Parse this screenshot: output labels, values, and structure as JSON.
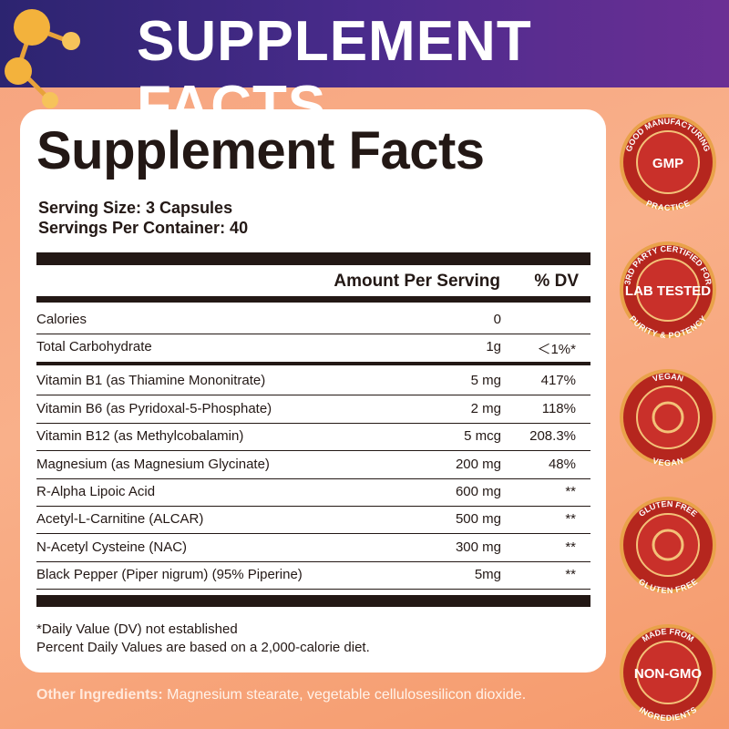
{
  "banner": {
    "title": "SUPPLEMENT FACTS"
  },
  "panel": {
    "title": "Supplement Facts",
    "serving_size": "Serving Size: 3 Capsules",
    "servings_per_container": "Servings Per Container: 40",
    "columns": {
      "amount": "Amount Per Serving",
      "dv": "% DV"
    },
    "rows": [
      {
        "name": "Calories",
        "amount": "0"
      },
      {
        "name": "Total Carbohydrate",
        "amount": "1g",
        "dv": "＜1%*"
      },
      {
        "name": "Vitamin B1 (as Thiamine Mononitrate)",
        "amount": "5 mg",
        "dv": "417%"
      },
      {
        "name": "Vitamin B6 (as Pyridoxal-5-Phosphate)",
        "amount": "2 mg",
        "dv": "118%"
      },
      {
        "name": "Vitamin B12 (as Methylcobalamin)",
        "amount": "5 mcg",
        "dv": "208.3%"
      },
      {
        "name": "Magnesium (as Magnesium Glycinate)",
        "amount": "200 mg",
        "dv": "48%"
      },
      {
        "name": "R-Alpha Lipoic Acid",
        "amount": "600 mg",
        "dv": "**"
      },
      {
        "name": "Acetyl-L-Carnitine (ALCAR)",
        "amount": "500 mg",
        "dv": "**"
      },
      {
        "name": "N-Acetyl Cysteine (NAC)",
        "amount": "300 mg",
        "dv": "**"
      },
      {
        "name": "Black Pepper (Piper nigrum) (95% Piperine)",
        "amount": "5mg",
        "dv": "**"
      }
    ],
    "footnotes": [
      "*Daily Value (DV) not established",
      "Percent Daily Values are based on a 2,000-calorie diet."
    ]
  },
  "other_ingredients": {
    "label": "Other Ingredients:",
    "text": "Magnesium stearate, vegetable cellulosesilicon dioxide."
  },
  "badges": [
    {
      "top": "GOOD MANUFACTURING",
      "bottom": "PRACTICE",
      "center": "GMP"
    },
    {
      "top": "3RD PARTY CERTIFIED FOR",
      "bottom": "PURITY & POTENCY",
      "center": "LAB TESTED"
    },
    {
      "top": "VEGAN",
      "bottom": "VEGAN"
    },
    {
      "top": "GLUTEN FREE",
      "bottom": "GLUTEN FREE"
    },
    {
      "top": "MADE FROM",
      "bottom": "INGREDIENTS",
      "center": "NON-GMO"
    }
  ]
}
